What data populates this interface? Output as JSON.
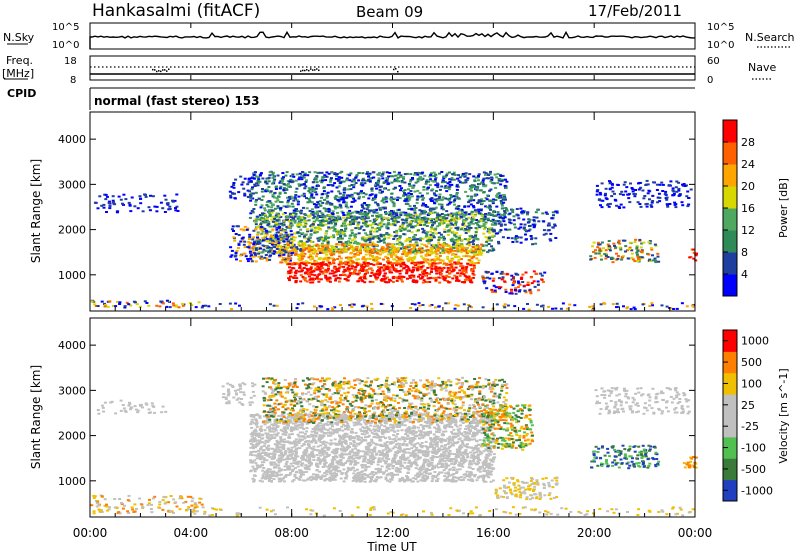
{
  "header": {
    "station": "Hankasalmi (fitACF)",
    "beam": "Beam 09",
    "date": "17/Feb/2011"
  },
  "noise_panel": {
    "left_label": "N.Sky",
    "right_label": "N.Search",
    "left_ticks": [
      "10^5",
      "10^0"
    ],
    "right_ticks": [
      "10^5",
      "10^0"
    ]
  },
  "freq_panel": {
    "left_label_line1": "Freq.",
    "left_label_line2": "[MHz]",
    "left_ticks": [
      "18",
      "8"
    ],
    "right_ticks": [
      "60",
      "0"
    ],
    "right_label": "Nave"
  },
  "cpid": {
    "label": "CPID",
    "mode": "normal (fast stereo) 153"
  },
  "time_axis": {
    "label": "Time UT",
    "ticks": [
      "00:00",
      "04:00",
      "08:00",
      "12:00",
      "16:00",
      "20:00",
      "00:00"
    ]
  },
  "colors": {
    "power_scale": [
      "#0000ff",
      "#1f3fa0",
      "#2e8b57",
      "#4fa860",
      "#d8d800",
      "#ffa500",
      "#ff6000",
      "#ff0000"
    ],
    "velocity_scale": [
      "#2040c0",
      "#3a7a3a",
      "#52c050",
      "#c0c0c0",
      "#c0c0c0",
      "#f0c000",
      "#ff8000",
      "#ff0000"
    ]
  },
  "chart_data": [
    {
      "type": "heatmap",
      "name": "power",
      "ylabel": "Slant Range [km]",
      "yticks": [
        "1000",
        "2000",
        "3000",
        "4000"
      ],
      "ylim": [
        200,
        4600
      ],
      "xlim": [
        0,
        24
      ],
      "colorbar_label": "Power [dB]",
      "colorbar_ticks": [
        "4",
        "8",
        "12",
        "16",
        "20",
        "24",
        "28"
      ]
    },
    {
      "type": "heatmap",
      "name": "velocity",
      "ylabel": "Slant Range [km]",
      "yticks": [
        "1000",
        "2000",
        "3000",
        "4000"
      ],
      "ylim": [
        200,
        4600
      ],
      "xlim": [
        0,
        24
      ],
      "colorbar_label": "Velocity [m s^-1]",
      "colorbar_ticks": [
        "1000",
        "500",
        "100",
        "25",
        "-25",
        "-100",
        "-500",
        "-1000"
      ]
    }
  ]
}
